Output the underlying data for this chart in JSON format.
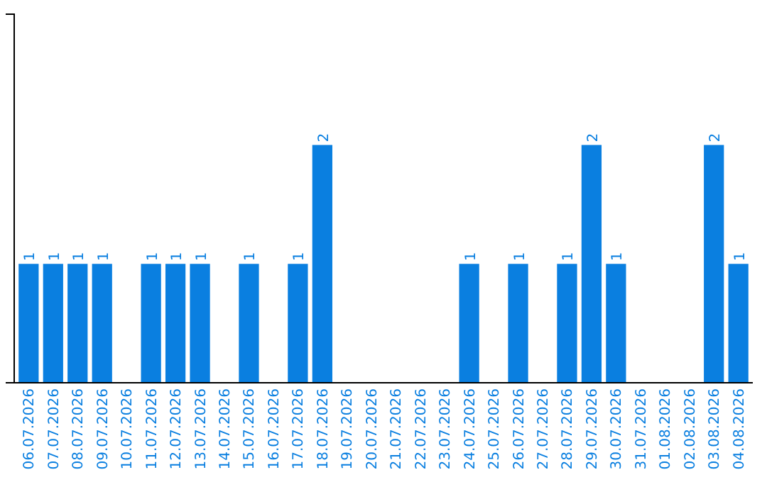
{
  "chart_data": {
    "type": "bar",
    "categories": [
      "06.07.2026",
      "07.07.2026",
      "08.07.2026",
      "09.07.2026",
      "10.07.2026",
      "11.07.2026",
      "12.07.2026",
      "13.07.2026",
      "14.07.2026",
      "15.07.2026",
      "16.07.2026",
      "17.07.2026",
      "18.07.2026",
      "19.07.2026",
      "20.07.2026",
      "21.07.2026",
      "22.07.2026",
      "23.07.2026",
      "24.07.2026",
      "25.07.2026",
      "26.07.2026",
      "27.07.2026",
      "28.07.2026",
      "29.07.2026",
      "30.07.2026",
      "31.07.2026",
      "01.08.2026",
      "02.08.2026",
      "03.08.2026",
      "04.08.2026"
    ],
    "values": [
      1,
      1,
      1,
      1,
      0,
      1,
      1,
      1,
      0,
      1,
      0,
      1,
      2,
      0,
      0,
      0,
      0,
      0,
      1,
      0,
      1,
      0,
      1,
      2,
      1,
      0,
      0,
      0,
      2,
      1
    ],
    "value_labels": [
      "1",
      "1",
      "1",
      "1",
      null,
      "1",
      "1",
      "1",
      null,
      "1",
      null,
      "1",
      "2",
      null,
      null,
      null,
      null,
      null,
      "1",
      null,
      "1",
      null,
      "1",
      "2",
      "1",
      null,
      null,
      null,
      "2",
      "1"
    ],
    "color": "#0a7fe0",
    "ylim": [
      0,
      3.1
    ],
    "tick_labels": "x"
  }
}
